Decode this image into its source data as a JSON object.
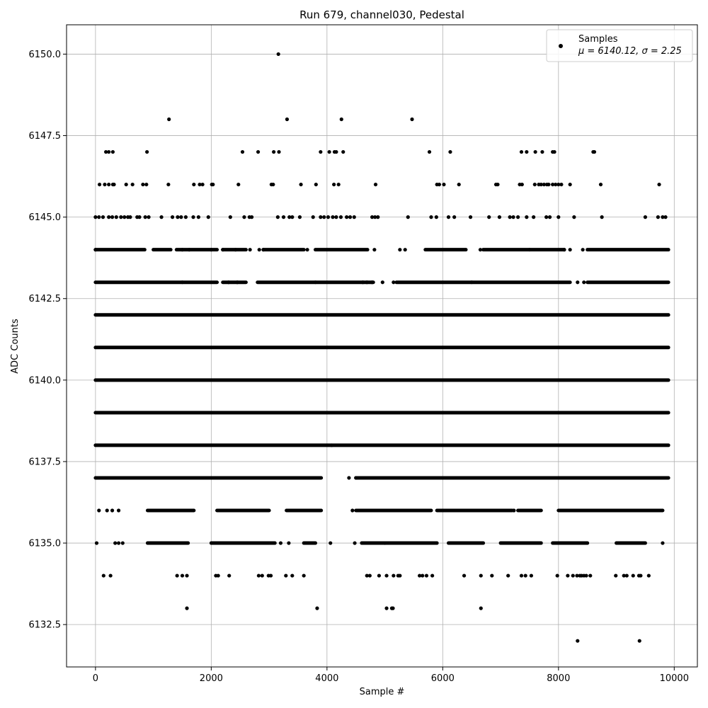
{
  "chart_data": {
    "type": "scatter",
    "title": "Run 679, channel030, Pedestal",
    "xlabel": "Sample #",
    "ylabel": "ADC Counts",
    "xlim": [
      -500,
      10400
    ],
    "ylim": [
      6131.2,
      6150.9
    ],
    "xticks": [
      0,
      2000,
      4000,
      6000,
      8000,
      10000
    ],
    "yticks": [
      6132.5,
      6135.0,
      6137.5,
      6140.0,
      6142.5,
      6145.0,
      6147.5,
      6150.0
    ],
    "xtick_labels": [
      "0",
      "2000",
      "4000",
      "6000",
      "8000",
      "10000"
    ],
    "ytick_labels": [
      "6132.5",
      "6135.0",
      "6137.5",
      "6140.0",
      "6142.5",
      "6145.0",
      "6147.5",
      "6150.0"
    ],
    "grid": true,
    "legend": {
      "placement": "top-right",
      "label": "Samples",
      "stats": "μ = 6140.12, σ = 2.25"
    },
    "marker_color": "#000000",
    "series": [
      {
        "name": "Samples",
        "level_segments": [
          {
            "y": 6142,
            "ranges": [
              [
                0,
                9900
              ]
            ]
          },
          {
            "y": 6141,
            "ranges": [
              [
                0,
                9900
              ]
            ]
          },
          {
            "y": 6140,
            "ranges": [
              [
                0,
                9900
              ]
            ]
          },
          {
            "y": 6139,
            "ranges": [
              [
                0,
                9900
              ]
            ]
          },
          {
            "y": 6138,
            "ranges": [
              [
                0,
                9900
              ]
            ]
          },
          {
            "y": 6143,
            "ranges": [
              [
                0,
                1500
              ],
              [
                1500,
                2100
              ],
              [
                2200,
                2600
              ],
              [
                2800,
                3800
              ],
              [
                3800,
                4800
              ],
              [
                5200,
                6500
              ],
              [
                6500,
                8200
              ],
              [
                8500,
                9900
              ]
            ]
          },
          {
            "y": 6137,
            "ranges": [
              [
                0,
                1400
              ],
              [
                1400,
                3100
              ],
              [
                3100,
                3900
              ],
              [
                4500,
                6600
              ],
              [
                6600,
                8200
              ],
              [
                8200,
                9900
              ]
            ]
          },
          {
            "y": 6144,
            "ranges": [
              [
                0,
                850
              ],
              [
                1000,
                1300
              ],
              [
                1400,
                2100
              ],
              [
                2200,
                2600
              ],
              [
                2900,
                3600
              ],
              [
                3800,
                4700
              ],
              [
                5700,
                6400
              ],
              [
                6700,
                7500
              ],
              [
                7500,
                8100
              ],
              [
                8500,
                9900
              ]
            ]
          },
          {
            "y": 6136,
            "ranges": [
              [
                900,
                1700
              ],
              [
                2100,
                3000
              ],
              [
                3300,
                3900
              ],
              [
                4500,
                5200
              ],
              [
                5200,
                5800
              ],
              [
                5900,
                7200
              ],
              [
                7300,
                7700
              ],
              [
                8000,
                8700
              ],
              [
                8700,
                9800
              ]
            ]
          },
          {
            "y": 6135,
            "ranges": [
              [
                900,
                1600
              ],
              [
                2000,
                3100
              ],
              [
                3600,
                3800
              ],
              [
                4600,
                5900
              ],
              [
                6100,
                6700
              ],
              [
                7000,
                7700
              ],
              [
                7900,
                8500
              ],
              [
                9000,
                9500
              ]
            ]
          }
        ],
        "points": [
          [
            3160,
            6150
          ],
          [
            1270,
            6148
          ],
          [
            3310,
            6148
          ],
          [
            4250,
            6148
          ],
          [
            5470,
            6148
          ],
          [
            180,
            6147
          ],
          [
            230,
            6147
          ],
          [
            300,
            6147
          ],
          [
            890,
            6147
          ],
          [
            2540,
            6147
          ],
          [
            2810,
            6147
          ],
          [
            3080,
            6147
          ],
          [
            3170,
            6147
          ],
          [
            3890,
            6147
          ],
          [
            4040,
            6147
          ],
          [
            4130,
            6147
          ],
          [
            4160,
            6147
          ],
          [
            4280,
            6147
          ],
          [
            5770,
            6147
          ],
          [
            6130,
            6147
          ],
          [
            7360,
            6147
          ],
          [
            7450,
            6147
          ],
          [
            7600,
            6147
          ],
          [
            7720,
            6147
          ],
          [
            7900,
            6147
          ],
          [
            7930,
            6147
          ],
          [
            8600,
            6147
          ],
          [
            8620,
            6147
          ],
          [
            70,
            6146
          ],
          [
            160,
            6146
          ],
          [
            230,
            6146
          ],
          [
            300,
            6146
          ],
          [
            320,
            6146
          ],
          [
            530,
            6146
          ],
          [
            640,
            6146
          ],
          [
            820,
            6146
          ],
          [
            880,
            6146
          ],
          [
            1260,
            6146
          ],
          [
            1700,
            6146
          ],
          [
            1800,
            6146
          ],
          [
            1850,
            6146
          ],
          [
            2010,
            6146
          ],
          [
            2030,
            6146
          ],
          [
            2470,
            6146
          ],
          [
            3040,
            6146
          ],
          [
            3070,
            6146
          ],
          [
            3550,
            6146
          ],
          [
            3810,
            6146
          ],
          [
            4120,
            6146
          ],
          [
            4200,
            6146
          ],
          [
            4840,
            6146
          ],
          [
            5900,
            6146
          ],
          [
            5940,
            6146
          ],
          [
            6020,
            6146
          ],
          [
            6280,
            6146
          ],
          [
            6920,
            6146
          ],
          [
            6950,
            6146
          ],
          [
            7330,
            6146
          ],
          [
            7370,
            6146
          ],
          [
            7590,
            6146
          ],
          [
            7660,
            6146
          ],
          [
            7700,
            6146
          ],
          [
            7750,
            6146
          ],
          [
            7800,
            6146
          ],
          [
            7830,
            6146
          ],
          [
            7900,
            6146
          ],
          [
            7950,
            6146
          ],
          [
            8000,
            6146
          ],
          [
            8050,
            6146
          ],
          [
            8200,
            6146
          ],
          [
            8730,
            6146
          ],
          [
            9740,
            6146
          ],
          [
            0,
            6145
          ],
          [
            60,
            6145
          ],
          [
            130,
            6145
          ],
          [
            230,
            6145
          ],
          [
            290,
            6145
          ],
          [
            360,
            6145
          ],
          [
            440,
            6145
          ],
          [
            500,
            6145
          ],
          [
            560,
            6145
          ],
          [
            600,
            6145
          ],
          [
            720,
            6145
          ],
          [
            760,
            6145
          ],
          [
            860,
            6145
          ],
          [
            920,
            6145
          ],
          [
            1140,
            6145
          ],
          [
            1330,
            6145
          ],
          [
            1420,
            6145
          ],
          [
            1480,
            6145
          ],
          [
            1560,
            6145
          ],
          [
            1690,
            6145
          ],
          [
            1780,
            6145
          ],
          [
            1950,
            6145
          ],
          [
            2330,
            6145
          ],
          [
            2570,
            6145
          ],
          [
            2660,
            6145
          ],
          [
            2700,
            6145
          ],
          [
            3150,
            6145
          ],
          [
            3250,
            6145
          ],
          [
            3350,
            6145
          ],
          [
            3400,
            6145
          ],
          [
            3530,
            6145
          ],
          [
            3760,
            6145
          ],
          [
            3890,
            6145
          ],
          [
            3950,
            6145
          ],
          [
            4020,
            6145
          ],
          [
            4100,
            6145
          ],
          [
            4160,
            6145
          ],
          [
            4240,
            6145
          ],
          [
            4340,
            6145
          ],
          [
            4400,
            6145
          ],
          [
            4470,
            6145
          ],
          [
            4780,
            6145
          ],
          [
            4830,
            6145
          ],
          [
            4880,
            6145
          ],
          [
            5400,
            6145
          ],
          [
            5800,
            6145
          ],
          [
            5890,
            6145
          ],
          [
            6100,
            6145
          ],
          [
            6200,
            6145
          ],
          [
            6480,
            6145
          ],
          [
            6800,
            6145
          ],
          [
            6980,
            6145
          ],
          [
            7160,
            6145
          ],
          [
            7220,
            6145
          ],
          [
            7300,
            6145
          ],
          [
            7450,
            6145
          ],
          [
            7570,
            6145
          ],
          [
            7790,
            6145
          ],
          [
            7850,
            6145
          ],
          [
            8000,
            6145
          ],
          [
            8270,
            6145
          ],
          [
            8750,
            6145
          ],
          [
            9500,
            6145
          ],
          [
            9720,
            6145
          ],
          [
            9800,
            6145
          ],
          [
            9850,
            6145
          ],
          [
            0,
            6144
          ],
          [
            1500,
            6144
          ],
          [
            1620,
            6144
          ],
          [
            2000,
            6144
          ],
          [
            2200,
            6144
          ],
          [
            2420,
            6144
          ],
          [
            2670,
            6144
          ],
          [
            2830,
            6144
          ],
          [
            2900,
            6144
          ],
          [
            3660,
            6144
          ],
          [
            4820,
            6144
          ],
          [
            5260,
            6144
          ],
          [
            5350,
            6144
          ],
          [
            6650,
            6144
          ],
          [
            8100,
            6144
          ],
          [
            8200,
            6144
          ],
          [
            8420,
            6144
          ],
          [
            2300,
            6143
          ],
          [
            2450,
            6143
          ],
          [
            4620,
            6143
          ],
          [
            4690,
            6143
          ],
          [
            4780,
            6143
          ],
          [
            4960,
            6143
          ],
          [
            5150,
            6143
          ],
          [
            8330,
            6143
          ],
          [
            8440,
            6143
          ],
          [
            4080,
            6138
          ],
          [
            4500,
            6137
          ],
          [
            4380,
            6137
          ],
          [
            60,
            6136
          ],
          [
            200,
            6136
          ],
          [
            290,
            6136
          ],
          [
            400,
            6136
          ],
          [
            4440,
            6136
          ],
          [
            7230,
            6136
          ],
          [
            20,
            6135
          ],
          [
            340,
            6135
          ],
          [
            400,
            6135
          ],
          [
            470,
            6135
          ],
          [
            5000,
            6135
          ],
          [
            4060,
            6135
          ],
          [
            4480,
            6135
          ],
          [
            3340,
            6135
          ],
          [
            3200,
            6135
          ],
          [
            9800,
            6135
          ],
          [
            140,
            6134
          ],
          [
            260,
            6134
          ],
          [
            1410,
            6134
          ],
          [
            1500,
            6134
          ],
          [
            1580,
            6134
          ],
          [
            2080,
            6134
          ],
          [
            2120,
            6134
          ],
          [
            2310,
            6134
          ],
          [
            2820,
            6134
          ],
          [
            2880,
            6134
          ],
          [
            2990,
            6134
          ],
          [
            3030,
            6134
          ],
          [
            3290,
            6134
          ],
          [
            3400,
            6134
          ],
          [
            3600,
            6134
          ],
          [
            4690,
            6134
          ],
          [
            4740,
            6134
          ],
          [
            4900,
            6134
          ],
          [
            5030,
            6134
          ],
          [
            5150,
            6134
          ],
          [
            5230,
            6134
          ],
          [
            5260,
            6134
          ],
          [
            5600,
            6134
          ],
          [
            5650,
            6134
          ],
          [
            5720,
            6134
          ],
          [
            5820,
            6134
          ],
          [
            6370,
            6134
          ],
          [
            6660,
            6134
          ],
          [
            6850,
            6134
          ],
          [
            7130,
            6134
          ],
          [
            7360,
            6134
          ],
          [
            7430,
            6134
          ],
          [
            7530,
            6134
          ],
          [
            7980,
            6134
          ],
          [
            8160,
            6134
          ],
          [
            8250,
            6134
          ],
          [
            8320,
            6134
          ],
          [
            8370,
            6134
          ],
          [
            8400,
            6134
          ],
          [
            8440,
            6134
          ],
          [
            8480,
            6134
          ],
          [
            8550,
            6134
          ],
          [
            8990,
            6134
          ],
          [
            9130,
            6134
          ],
          [
            9180,
            6134
          ],
          [
            9290,
            6134
          ],
          [
            9390,
            6134
          ],
          [
            9420,
            6134
          ],
          [
            9560,
            6134
          ],
          [
            1580,
            6133
          ],
          [
            3830,
            6133
          ],
          [
            5030,
            6133
          ],
          [
            5120,
            6133
          ],
          [
            5140,
            6133
          ],
          [
            6660,
            6133
          ],
          [
            8330,
            6132
          ],
          [
            9400,
            6132
          ]
        ]
      }
    ]
  }
}
